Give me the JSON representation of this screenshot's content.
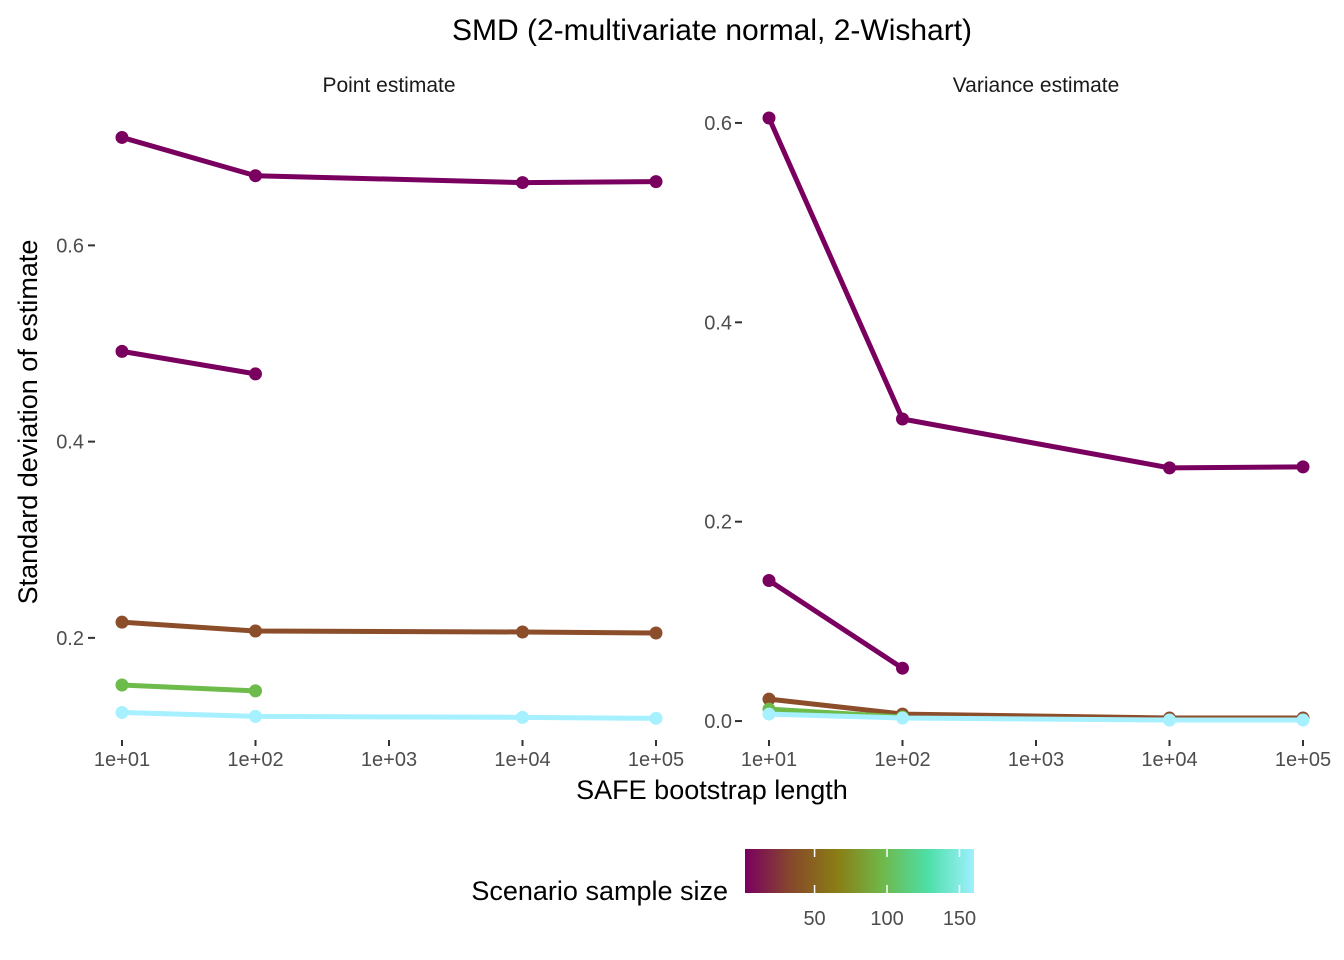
{
  "chart_data": {
    "type": "line",
    "title": "SMD (2-multivariate normal, 2-Wishart)",
    "xlabel": "SAFE bootstrap length",
    "ylabel": "Standard deviation of estimate",
    "x_scale": "log10",
    "x_ticks": [
      10,
      100,
      1000,
      10000,
      100000
    ],
    "x_tick_labels": [
      "1e+01",
      "1e+02",
      "1e+03",
      "1e+04",
      "1e+05"
    ],
    "grid": false,
    "legend": {
      "title": "Scenario sample size",
      "placement": "bottom",
      "type": "colorbar",
      "range": [
        2,
        160
      ],
      "ticks": [
        50,
        100,
        150
      ],
      "colors": [
        "#7a0060",
        "#86482b",
        "#8a7d14",
        "#6fb84a",
        "#4ddfa8",
        "#9ff0ff"
      ]
    },
    "panels": [
      {
        "label": "Point estimate",
        "ylim": [
          0.1,
          0.74
        ],
        "y_ticks": [
          0.2,
          0.4,
          0.6
        ],
        "y_tick_labels": [
          "0.2",
          "0.4",
          "0.6"
        ],
        "series": [
          {
            "color": "#7a0060",
            "x": [
              10,
              100,
              10000,
              100000
            ],
            "values": [
              0.71,
              0.671,
              0.664,
              0.665
            ]
          },
          {
            "color": "#7a0060",
            "x": [
              10,
              100
            ],
            "values": [
              0.492,
              0.469
            ]
          },
          {
            "color": "#8b4d2a",
            "x": [
              10,
              100,
              10000,
              100000
            ],
            "values": [
              0.216,
              0.207,
              0.206,
              0.205
            ]
          },
          {
            "color": "#6dbb4a",
            "x": [
              10,
              100
            ],
            "values": [
              0.152,
              0.146
            ]
          },
          {
            "color": "#a6f0ff",
            "x": [
              10,
              100,
              10000,
              100000
            ],
            "values": [
              0.124,
              0.12,
              0.119,
              0.118
            ]
          }
        ]
      },
      {
        "label": "Variance estimate",
        "ylim": [
          -0.015,
          0.615
        ],
        "y_ticks": [
          0.0,
          0.2,
          0.4,
          0.6
        ],
        "y_tick_labels": [
          "0.0",
          "0.2",
          "0.4",
          "0.6"
        ],
        "series": [
          {
            "color": "#7a0060",
            "x": [
              10,
              100,
              10000,
              100000
            ],
            "values": [
              0.605,
              0.303,
              0.254,
              0.255
            ]
          },
          {
            "color": "#7a0060",
            "x": [
              10,
              100
            ],
            "values": [
              0.141,
              0.053
            ]
          },
          {
            "color": "#8b4d2a",
            "x": [
              10,
              100,
              10000,
              100000
            ],
            "values": [
              0.022,
              0.007,
              0.003,
              0.003
            ]
          },
          {
            "color": "#6dbb4a",
            "x": [
              10,
              100
            ],
            "values": [
              0.012,
              0.004
            ]
          },
          {
            "color": "#a6f0ff",
            "x": [
              10,
              100,
              10000,
              100000
            ],
            "values": [
              0.007,
              0.003,
              0.001,
              0.001
            ]
          }
        ]
      }
    ]
  }
}
